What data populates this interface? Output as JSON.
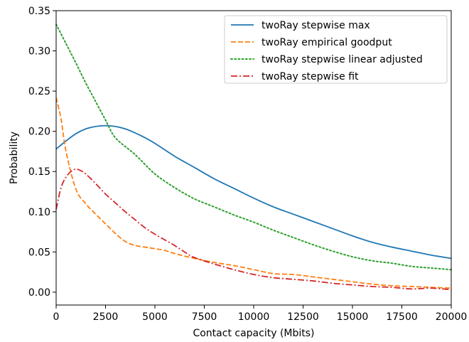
{
  "chart_data": {
    "type": "line",
    "xlabel": "Contact capacity (Mbits)",
    "ylabel": "Probability",
    "xlim": [
      0,
      20000
    ],
    "ylim": [
      -0.016,
      0.35
    ],
    "xticks": [
      0,
      2500,
      5000,
      7500,
      10000,
      12500,
      15000,
      17500,
      20000
    ],
    "xtick_labels": [
      "0",
      "2500",
      "5000",
      "7500",
      "10000",
      "12500",
      "15000",
      "17500",
      "20000"
    ],
    "yticks": [
      0.0,
      0.05,
      0.1,
      0.15,
      0.2,
      0.25,
      0.3,
      0.35
    ],
    "ytick_labels": [
      "0.00",
      "0.05",
      "0.10",
      "0.15",
      "0.20",
      "0.25",
      "0.30",
      "0.35"
    ],
    "grid": false,
    "legend_position": "top-right",
    "series": [
      {
        "name": "twoRay stepwise max",
        "color": "#1f77b4",
        "style": "solid",
        "x": [
          0,
          500,
          1000,
          1500,
          2000,
          2500,
          3000,
          3500,
          4000,
          4500,
          5000,
          6000,
          7000,
          8000,
          9000,
          10000,
          11000,
          12000,
          13000,
          14000,
          15000,
          16000,
          17000,
          18000,
          19000,
          20000
        ],
        "y": [
          0.178,
          0.188,
          0.197,
          0.203,
          0.206,
          0.207,
          0.206,
          0.203,
          0.198,
          0.192,
          0.185,
          0.169,
          0.155,
          0.141,
          0.129,
          0.117,
          0.106,
          0.097,
          0.088,
          0.079,
          0.07,
          0.062,
          0.056,
          0.051,
          0.046,
          0.042
        ]
      },
      {
        "name": "twoRay empirical goodput",
        "color": "#ff7f0e",
        "style": "dashed",
        "x": [
          0,
          250,
          500,
          1000,
          1500,
          2000,
          2500,
          3000,
          3500,
          4000,
          4500,
          5000,
          5500,
          6000,
          7000,
          8000,
          9000,
          10000,
          11000,
          12000,
          13000,
          14000,
          15000,
          16000,
          17000,
          18000,
          19000,
          20000
        ],
        "y": [
          0.242,
          0.215,
          0.175,
          0.128,
          0.11,
          0.097,
          0.085,
          0.073,
          0.063,
          0.058,
          0.056,
          0.054,
          0.052,
          0.048,
          0.042,
          0.037,
          0.033,
          0.028,
          0.023,
          0.022,
          0.019,
          0.016,
          0.013,
          0.01,
          0.008,
          0.007,
          0.006,
          0.005
        ]
      },
      {
        "name": "twoRay stepwise linear adjusted",
        "color": "#2ca02c",
        "style": "dotted",
        "x": [
          0,
          500,
          1000,
          1500,
          2000,
          2500,
          3000,
          4000,
          5000,
          6000,
          7000,
          8000,
          9000,
          10000,
          11000,
          12000,
          13000,
          14000,
          15000,
          16000,
          17000,
          18000,
          19000,
          20000
        ],
        "y": [
          0.333,
          0.309,
          0.285,
          0.26,
          0.237,
          0.214,
          0.192,
          0.171,
          0.147,
          0.13,
          0.116,
          0.106,
          0.096,
          0.087,
          0.077,
          0.068,
          0.059,
          0.051,
          0.044,
          0.039,
          0.036,
          0.032,
          0.03,
          0.028
        ]
      },
      {
        "name": "twoRay stepwise fit",
        "color": "#d62728",
        "style": "dashdot",
        "x": [
          0,
          250,
          500,
          750,
          1000,
          1250,
          1500,
          2000,
          2500,
          3000,
          3500,
          4000,
          4500,
          5000,
          5500,
          6000,
          6500,
          7000,
          8000,
          9000,
          10000,
          11000,
          12000,
          13000,
          14000,
          15000,
          16000,
          17000,
          18000,
          19000,
          20000
        ],
        "y": [
          0.103,
          0.13,
          0.143,
          0.15,
          0.153,
          0.151,
          0.147,
          0.135,
          0.122,
          0.111,
          0.1,
          0.09,
          0.08,
          0.072,
          0.065,
          0.058,
          0.05,
          0.043,
          0.035,
          0.028,
          0.022,
          0.018,
          0.016,
          0.014,
          0.011,
          0.009,
          0.007,
          0.006,
          0.004,
          0.005,
          0.003
        ]
      }
    ]
  }
}
